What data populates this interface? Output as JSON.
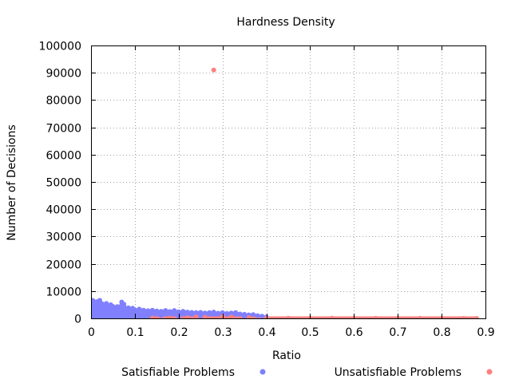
{
  "chart_data": {
    "type": "scatter",
    "title": "Hardness Density",
    "xlabel": "Ratio",
    "ylabel": "Number of Decisions",
    "xlim": [
      0,
      0.9
    ],
    "ylim": [
      0,
      100000
    ],
    "x_ticks": [
      "0",
      "0.1",
      "0.2",
      "0.3",
      "0.4",
      "0.5",
      "0.6",
      "0.7",
      "0.8",
      "0.9"
    ],
    "y_ticks": [
      "0",
      "10000",
      "20000",
      "30000",
      "40000",
      "50000",
      "60000",
      "70000",
      "80000",
      "90000",
      "100000"
    ],
    "grid": true,
    "legend_position": "bottom",
    "series": [
      {
        "name": "Satisfiable Problems",
        "color": "#8080ff",
        "points": [
          [
            0.0,
            6800
          ],
          [
            0.005,
            6500
          ],
          [
            0.01,
            5800
          ],
          [
            0.015,
            6200
          ],
          [
            0.02,
            6600
          ],
          [
            0.025,
            5400
          ],
          [
            0.03,
            4800
          ],
          [
            0.035,
            5500
          ],
          [
            0.04,
            4600
          ],
          [
            0.045,
            5000
          ],
          [
            0.05,
            4400
          ],
          [
            0.055,
            3900
          ],
          [
            0.06,
            4300
          ],
          [
            0.065,
            4100
          ],
          [
            0.07,
            6000
          ],
          [
            0.075,
            5200
          ],
          [
            0.08,
            3600
          ],
          [
            0.085,
            3900
          ],
          [
            0.09,
            3300
          ],
          [
            0.095,
            3700
          ],
          [
            0.1,
            3100
          ],
          [
            0.11,
            3400
          ],
          [
            0.12,
            3000
          ],
          [
            0.13,
            2800
          ],
          [
            0.14,
            3000
          ],
          [
            0.15,
            2700
          ],
          [
            0.16,
            2600
          ],
          [
            0.17,
            2900
          ],
          [
            0.18,
            2500
          ],
          [
            0.19,
            2900
          ],
          [
            0.2,
            2400
          ],
          [
            0.21,
            2600
          ],
          [
            0.22,
            2300
          ],
          [
            0.23,
            2200
          ],
          [
            0.24,
            2100
          ],
          [
            0.25,
            2200
          ],
          [
            0.26,
            2000
          ],
          [
            0.27,
            2100
          ],
          [
            0.28,
            2300
          ],
          [
            0.29,
            1900
          ],
          [
            0.3,
            2100
          ],
          [
            0.31,
            1800
          ],
          [
            0.32,
            2000
          ],
          [
            0.33,
            2100
          ],
          [
            0.34,
            1600
          ],
          [
            0.35,
            1500
          ],
          [
            0.36,
            1300
          ],
          [
            0.37,
            1400
          ],
          [
            0.38,
            1000
          ],
          [
            0.39,
            800
          ],
          [
            0.4,
            500
          ],
          [
            0.01,
            3000
          ],
          [
            0.03,
            2500
          ],
          [
            0.05,
            2000
          ],
          [
            0.08,
            1500
          ],
          [
            0.12,
            1200
          ],
          [
            0.16,
            1000
          ],
          [
            0.2,
            800
          ],
          [
            0.25,
            700
          ],
          [
            0.3,
            600
          ],
          [
            0.35,
            400
          ]
        ]
      },
      {
        "name": "Unsatisfiable Problems",
        "color": "#ff8080",
        "points": [
          [
            0.28,
            91000
          ],
          [
            0.24,
            500
          ],
          [
            0.26,
            400
          ],
          [
            0.3,
            600
          ],
          [
            0.32,
            500
          ],
          [
            0.36,
            300
          ],
          [
            0.14,
            100
          ],
          [
            0.18,
            150
          ],
          [
            0.22,
            200
          ],
          [
            0.4,
            100
          ],
          [
            0.45,
            80
          ],
          [
            0.5,
            60
          ],
          [
            0.55,
            50
          ],
          [
            0.6,
            40
          ],
          [
            0.65,
            30
          ],
          [
            0.7,
            30
          ],
          [
            0.75,
            20
          ],
          [
            0.8,
            20
          ],
          [
            0.85,
            10
          ],
          [
            0.88,
            10
          ]
        ]
      }
    ]
  }
}
